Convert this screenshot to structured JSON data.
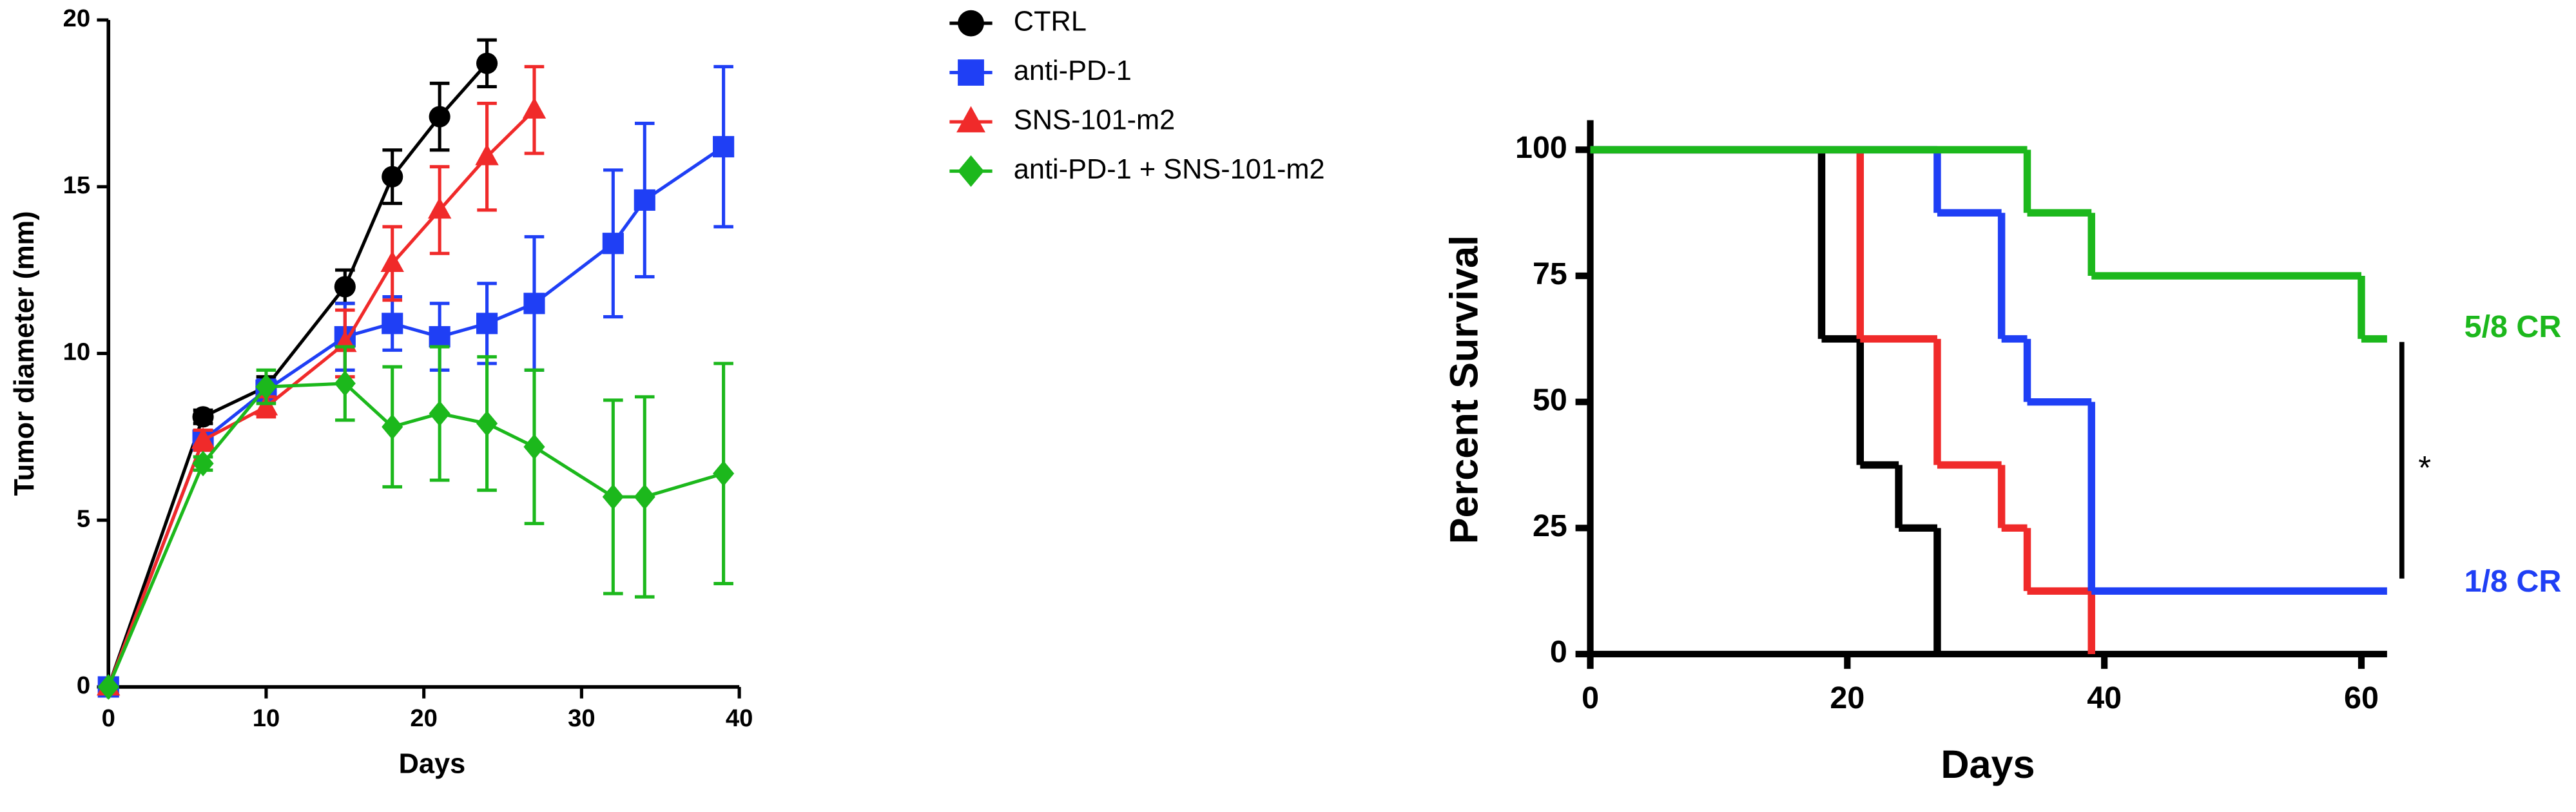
{
  "chart_data": [
    {
      "type": "line",
      "ylabel": "Tumor diameter (mm)",
      "xlabel": "Days",
      "xlim": [
        0,
        40
      ],
      "ylim": [
        0,
        20
      ],
      "xticks": [
        0,
        10,
        20,
        30,
        40
      ],
      "yticks": [
        0,
        5,
        10,
        15,
        20
      ],
      "legend": "outside-right",
      "series": [
        {
          "name": "CTRL",
          "color": "#000000",
          "marker": "circle",
          "x": [
            0,
            6,
            10,
            15,
            18,
            21,
            24
          ],
          "values": [
            0,
            8.1,
            9.0,
            12.0,
            15.3,
            17.1,
            18.7
          ],
          "errors": [
            0,
            0.2,
            0.3,
            0.5,
            0.8,
            1.0,
            0.7
          ]
        },
        {
          "name": "anti-PD-1",
          "color": "#1f3ff5",
          "marker": "square",
          "x": [
            0,
            6,
            10,
            15,
            18,
            21,
            24,
            27,
            32,
            34,
            39
          ],
          "values": [
            0,
            7.4,
            8.9,
            10.5,
            10.9,
            10.5,
            10.9,
            11.5,
            13.3,
            14.6,
            16.2
          ],
          "errors": [
            0,
            0.3,
            0.3,
            1.0,
            0.8,
            1.0,
            1.2,
            2.0,
            2.2,
            2.3,
            2.4
          ]
        },
        {
          "name": "SNS-101-m2",
          "color": "#f02a2a",
          "marker": "triangle",
          "x": [
            0,
            6,
            10,
            15,
            18,
            21,
            24,
            27
          ],
          "values": [
            0,
            7.4,
            8.4,
            10.3,
            12.7,
            14.3,
            15.9,
            17.3
          ],
          "errors": [
            0,
            0.3,
            0.3,
            1.0,
            1.1,
            1.3,
            1.6,
            1.3
          ]
        },
        {
          "name": "anti-PD-1 + SNS-101-m2",
          "color": "#1cb81c",
          "marker": "diamond",
          "x": [
            0,
            6,
            10,
            15,
            18,
            21,
            24,
            27,
            32,
            34,
            39
          ],
          "values": [
            0,
            6.7,
            9.0,
            9.1,
            7.8,
            8.2,
            7.9,
            7.2,
            5.7,
            5.7,
            6.4
          ],
          "errors": [
            0,
            0.2,
            0.5,
            1.1,
            1.8,
            2.0,
            2.0,
            2.3,
            2.9,
            3.0,
            3.3
          ]
        }
      ]
    },
    {
      "type": "step",
      "ylabel": "Percent Survival",
      "xlabel": "Days",
      "xlim": [
        0,
        62
      ],
      "ylim": [
        0,
        100
      ],
      "xticks": [
        0,
        20,
        40,
        60
      ],
      "yticks": [
        0,
        25,
        50,
        75,
        100
      ],
      "series": [
        {
          "color": "#000000",
          "x": [
            0,
            18,
            21,
            24,
            27
          ],
          "values": [
            100,
            62.5,
            37.5,
            25,
            0
          ]
        },
        {
          "color": "#f02a2a",
          "x": [
            0,
            21,
            27,
            32,
            34,
            39
          ],
          "values": [
            100,
            62.5,
            37.5,
            25,
            12.5,
            0
          ]
        },
        {
          "color": "#1f3ff5",
          "x": [
            0,
            27,
            32,
            34,
            39,
            62
          ],
          "values": [
            100,
            87.5,
            62.5,
            50,
            12.5,
            12.5
          ]
        },
        {
          "color": "#1cb81c",
          "x": [
            0,
            34,
            39,
            60,
            62
          ],
          "values": [
            100,
            87.5,
            75,
            62.5,
            62.5
          ]
        }
      ],
      "annotations": [
        {
          "text": "5/8 CR",
          "color": "#1cb81c"
        },
        {
          "text": "1/8 CR",
          "color": "#1f3ff5"
        },
        {
          "text": "*",
          "color": "#000000"
        }
      ]
    }
  ]
}
